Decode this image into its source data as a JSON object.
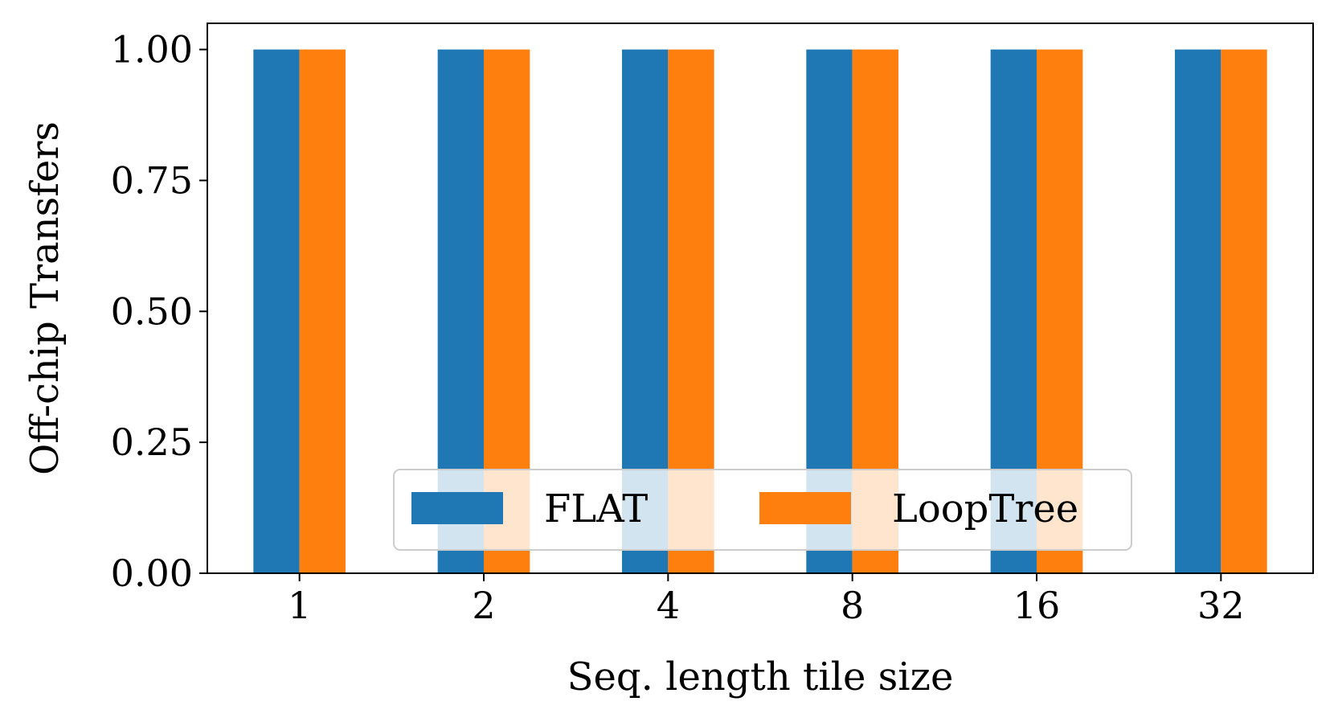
{
  "chart_data": {
    "type": "bar",
    "title": "",
    "xlabel": "Seq. length tile size",
    "ylabel": "Off-chip Transfers",
    "categories": [
      "1",
      "2",
      "4",
      "8",
      "16",
      "32"
    ],
    "series": [
      {
        "name": "FLAT",
        "values": [
          1.0,
          1.0,
          1.0,
          1.0,
          1.0,
          1.0
        ],
        "color": "#1f77b4"
      },
      {
        "name": "LoopTree",
        "values": [
          1.0,
          1.0,
          1.0,
          1.0,
          1.0,
          1.0
        ],
        "color": "#ff7f0e"
      }
    ],
    "ylim": [
      0,
      1.05
    ],
    "yticks": [
      "0.00",
      "0.25",
      "0.50",
      "0.75",
      "1.00"
    ],
    "grid": false,
    "legend_position": "lower-center",
    "legend_columns": 2
  }
}
